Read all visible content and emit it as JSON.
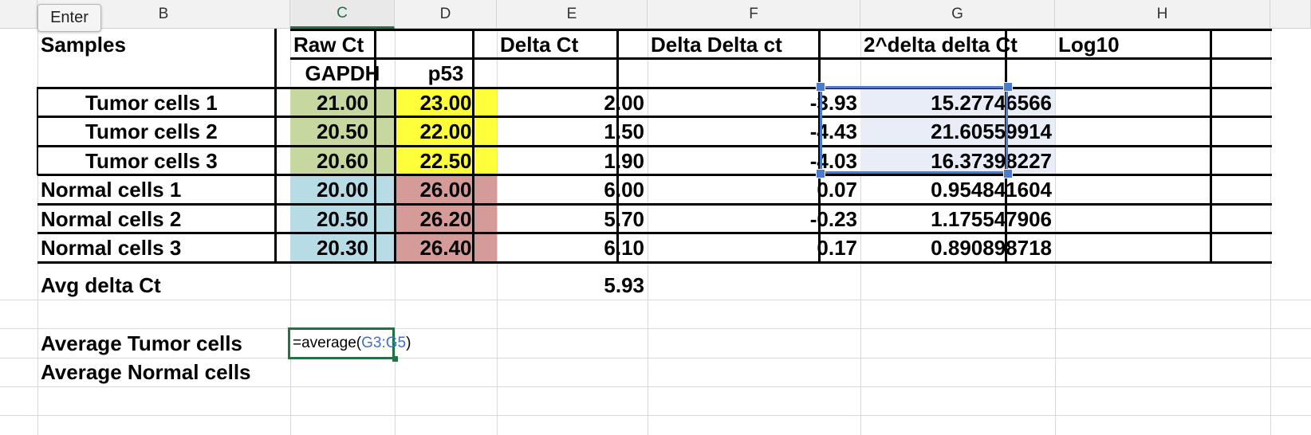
{
  "app": {
    "mode_indicator": "Enter"
  },
  "columns": [
    "B",
    "C",
    "D",
    "E",
    "F",
    "G",
    "H"
  ],
  "active_column": "C",
  "headers": {
    "samples": "Samples",
    "raw_ct": "Raw Ct",
    "delta_ct": "Delta Ct",
    "delta_delta_ct": "Delta Delta ct",
    "power": "2^delta delta Ct",
    "log10": "Log10",
    "gapdh": "GAPDH",
    "p53": "p53"
  },
  "rows": [
    {
      "sample": "Tumor cells 1",
      "gapdh": "21.00",
      "p53": "23.00",
      "delta_ct": "2.00",
      "delta_delta_ct": "-3.93",
      "power": "15.27746566"
    },
    {
      "sample": "Tumor cells 2",
      "gapdh": "20.50",
      "p53": "22.00",
      "delta_ct": "1.50",
      "delta_delta_ct": "-4.43",
      "power": "21.60559914"
    },
    {
      "sample": "Tumor cells 3",
      "gapdh": "20.60",
      "p53": "22.50",
      "delta_ct": "1.90",
      "delta_delta_ct": "-4.03",
      "power": "16.37398227"
    },
    {
      "sample": "Normal cells 1",
      "gapdh": "20.00",
      "p53": "26.00",
      "delta_ct": "6.00",
      "delta_delta_ct": "0.07",
      "power": "0.954841604"
    },
    {
      "sample": "Normal cells 2",
      "gapdh": "20.50",
      "p53": "26.20",
      "delta_ct": "5.70",
      "delta_delta_ct": "-0.23",
      "power": "1.175547906"
    },
    {
      "sample": "Normal cells 3",
      "gapdh": "20.30",
      "p53": "26.40",
      "delta_ct": "6.10",
      "delta_delta_ct": "0.17",
      "power": "0.890898718"
    }
  ],
  "avg_delta_ct": {
    "label": "Avg delta Ct",
    "value": "5.93"
  },
  "avg_tumor_label": "Average Tumor cells",
  "avg_normal_label": "Average Normal cells",
  "formula": {
    "prefix": "=average(",
    "ref": "G3:G5",
    "suffix": ")"
  },
  "colors": {
    "gapdh_tumor": "#c6d89f",
    "p53_tumor": "#fefe3a",
    "gapdh_normal": "#b7dce6",
    "p53_normal": "#d59b98",
    "selection": "#4a7bd0",
    "edit_border": "#217346",
    "formula_ref": "#3c6fcf"
  }
}
